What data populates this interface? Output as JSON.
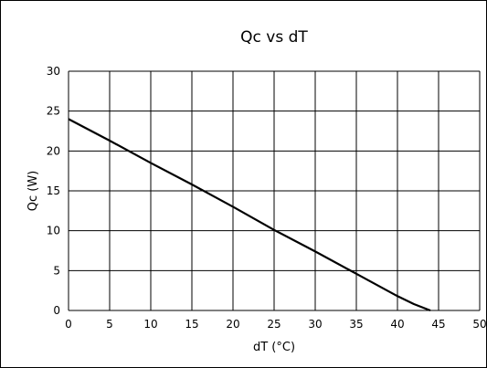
{
  "chart_data": {
    "type": "line",
    "title": "Qc vs dT",
    "xlabel": "dT (°C)",
    "ylabel": "Qc (W)",
    "xlim": [
      0,
      50
    ],
    "ylim": [
      0,
      30
    ],
    "xticks": [
      0,
      5,
      10,
      15,
      20,
      25,
      30,
      35,
      40,
      45,
      50
    ],
    "yticks": [
      0,
      5,
      10,
      15,
      20,
      25,
      30
    ],
    "grid": true,
    "legend": "none",
    "series": [
      {
        "color": "#000000",
        "x": [
          0,
          5,
          10,
          15,
          20,
          25,
          30,
          35,
          40,
          42,
          44
        ],
        "y": [
          24,
          21.3,
          18.5,
          15.8,
          13,
          10.1,
          7.4,
          4.6,
          1.8,
          0.8,
          0
        ]
      }
    ]
  }
}
